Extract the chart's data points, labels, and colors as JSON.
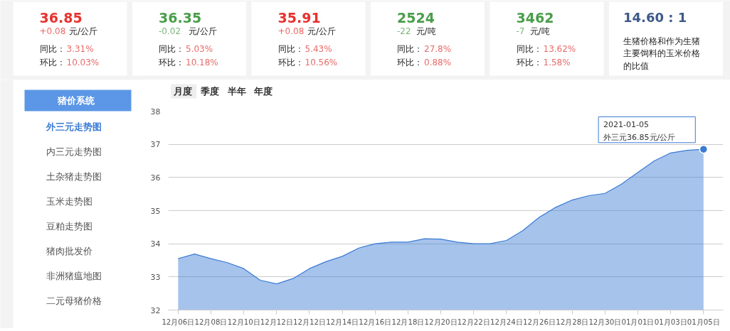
{
  "chart_data": [
    {
      "type": "other",
      "colors": [
        "#e8322f",
        "#4a9e4a",
        "#e8322f",
        "#4a9e4a",
        "#4a9e4a",
        "#3d5a8a"
      ],
      "annotations": [
        "36.85",
        "+0.08",
        "元/公斤",
        "同比：",
        "3.31%",
        "环比：",
        "10.03%",
        "36.35",
        "-0.02",
        "元/公斤",
        "同比：",
        "5.03%",
        "环比：",
        "10.18%",
        "35.91",
        "+0.08",
        "元/公斤",
        "同比：",
        "5.43%",
        "环比：",
        "10.56%",
        "2524",
        "-22",
        "元/吨",
        "同比：",
        "27.8%",
        "环比：",
        "0.88%",
        "3462",
        "-7",
        "元/吨",
        "同比：",
        "13.62%",
        "环比：",
        "1.58%",
        "14.60 : 1",
        "生猪价格和作为生猪主要饲料的玉米价格的比值"
      ]
    },
    {
      "type": "area",
      "color": "#3a7bd5",
      "categories": [
        "12月06日",
        null,
        "12月08日",
        null,
        "12月10日",
        null,
        "12月12日",
        null,
        "12月12日",
        null,
        "12月14日",
        null,
        "12月16日",
        null,
        "12月18日",
        null,
        "12月20日",
        null,
        "12月22日",
        null,
        "12月24日",
        null,
        "12月26日",
        null,
        "12月28日",
        null,
        "12月30日",
        null,
        "01月01日",
        null,
        "01月03日",
        null,
        "01月05日"
      ],
      "values": [
        33.55,
        33.69,
        33.55,
        33.43,
        33.25,
        32.9,
        32.79,
        32.95,
        33.25,
        33.46,
        33.62,
        33.87,
        34.0,
        34.05,
        34.05,
        34.15,
        34.14,
        34.05,
        34.0,
        34.0,
        34.1,
        34.4,
        34.8,
        35.1,
        35.32,
        35.45,
        35.52,
        35.8,
        36.15,
        36.5,
        36.74,
        36.82,
        36.85
      ],
      "ylim": [
        32,
        38
      ],
      "yticks": [
        32,
        33,
        34,
        35,
        36,
        37,
        38
      ],
      "grid": "y",
      "annotations": [
        "月度",
        "季度",
        "半年",
        "年度",
        "猪价系统",
        "外三元走势图",
        "内三元走势图",
        "土杂猪走势图",
        "玉米走势图",
        "豆粕走势图",
        "猪肉批发价",
        "非洲猪瘟地图",
        "二元母猪价格",
        "2021-01-05\n外三元36.85元/公斤"
      ]
    }
  ]
}
